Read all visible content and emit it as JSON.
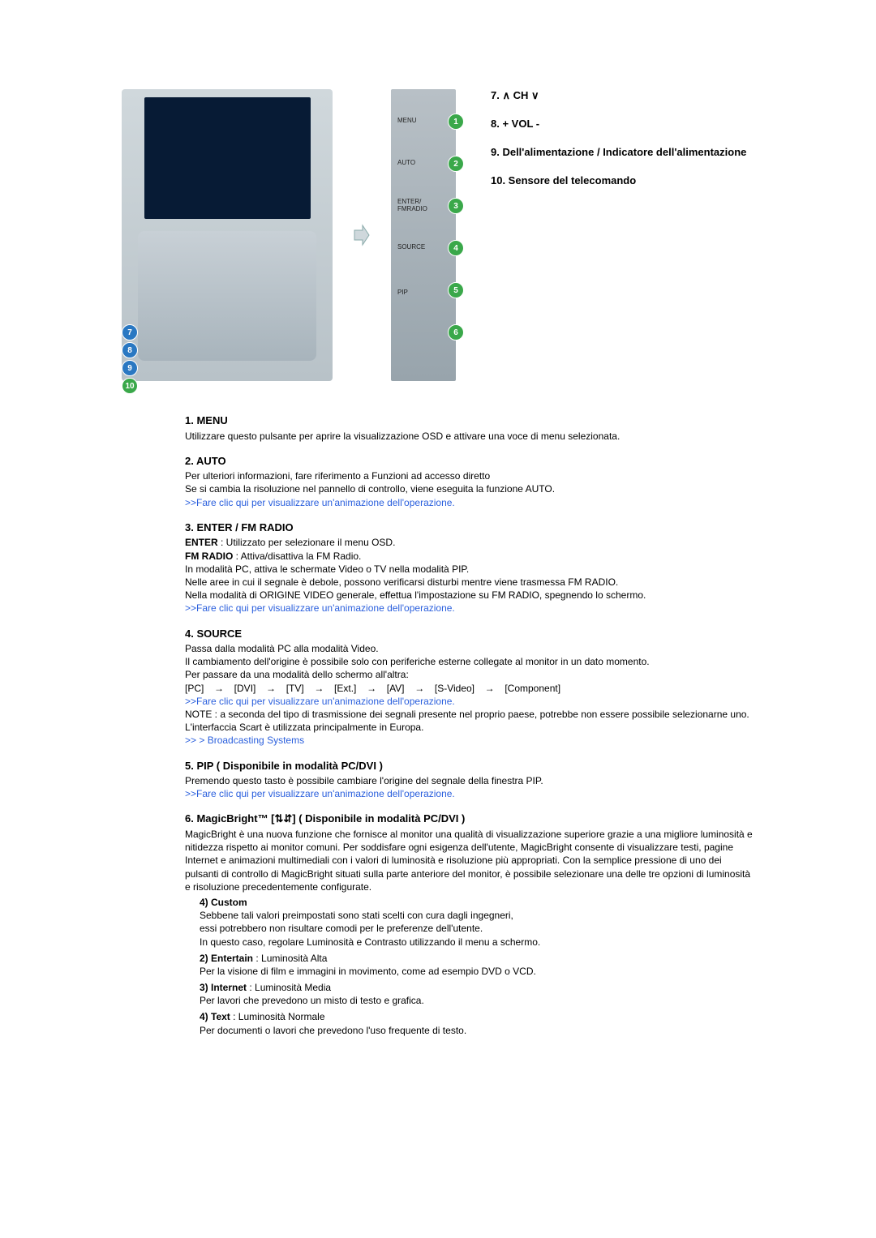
{
  "topRight": {
    "item7": "7. ∧ CH ∨",
    "item8": "8. + VOL -",
    "item9": "9. Dell'alimentazione / Indicatore dell'alimentazione",
    "item10": "10. Sensore del telecomando"
  },
  "panelLabels": [
    "MENU",
    "AUTO",
    "ENTER/\nFM RADIO",
    "SOURCE",
    "PIP",
    ""
  ],
  "items": {
    "menu": {
      "title": "1. MENU",
      "body": "Utilizzare questo pulsante per aprire la visualizzazione OSD e attivare una voce di menu selezionata."
    },
    "auto": {
      "title": "2. AUTO",
      "line1": "Per ulteriori informazioni, fare riferimento a Funzioni ad accesso diretto",
      "line2": "Se si cambia la risoluzione nel pannello di controllo, viene eseguita la funzione AUTO.",
      "link": ">>Fare clic qui per visualizzare un'animazione dell'operazione."
    },
    "enter": {
      "title": "3. ENTER / FM RADIO",
      "enterLabel": "ENTER",
      "enterText": " : Utilizzato per selezionare il menu OSD.",
      "fmLabel": "FM RADIO",
      "fmText": " : Attiva/disattiva la FM Radio.",
      "line1": "In modalità PC, attiva le schermate Video o TV nella modalità PIP.",
      "line2": "Nelle aree in cui il segnale è debole, possono verificarsi disturbi mentre viene trasmessa FM RADIO.",
      "line3": "Nella modalità di ORIGINE VIDEO generale, effettua l'impostazione su FM RADIO, spegnendo lo schermo.",
      "link": ">>Fare clic qui per visualizzare un'animazione dell'operazione."
    },
    "source": {
      "title": "4. SOURCE",
      "line1": "Passa dalla modalità PC alla modalità Video.",
      "line2": "Il cambiamento dell'origine è possibile solo con periferiche esterne collegate al monitor in un dato momento.",
      "line3": "Per passare da una modalità dello schermo all'altra:",
      "modes": [
        "[PC]",
        "[DVI]",
        "[TV]",
        "[Ext.]",
        "[AV]",
        "[S-Video]",
        "[Component]"
      ],
      "arrow": "→",
      "link": ">>Fare clic qui per visualizzare un'animazione dell'operazione.",
      "note": "NOTE : a seconda del tipo di trasmissione dei segnali presente nel proprio paese, potrebbe non essere possibile selezionarne uno. L'interfaccia Scart è utilizzata principalmente in Europa.",
      "bcast": ">> >  Broadcasting Systems"
    },
    "pip": {
      "title": "5. PIP ( Disponibile in modalità PC/DVI )",
      "body": "Premendo questo tasto è possibile cambiare l'origine del segnale della finestra PIP.",
      "link": ">>Fare clic qui per visualizzare un'animazione dell'operazione."
    },
    "mb": {
      "title": "6. MagicBright™  [⇅⇵]  ( Disponibile in modalità PC/DVI )",
      "body": "MagicBright è una nuova funzione che fornisce al monitor una qualità di visualizzazione superiore grazie a una migliore luminosità e nitidezza rispetto ai monitor comuni. Per soddisfare ogni esigenza dell'utente, MagicBright consente di visualizzare testi, pagine Internet e animazioni multimediali con i valori di luminosità e risoluzione più appropriati. Con la semplice pressione di uno dei pulsanti di controllo di MagicBright situati sulla parte anteriore del monitor, è possibile selezionare una delle tre opzioni di luminosità e risoluzione precedentemente configurate.",
      "sub": {
        "custom": {
          "title": "4) Custom",
          "l1": "Sebbene tali valori preimpostati sono stati scelti con cura dagli ingegneri,",
          "l2": "essi potrebbero non risultare comodi per le preferenze dell'utente.",
          "l3": "In questo caso, regolare Luminosità e Contrasto utilizzando il menu a schermo."
        },
        "entertain": {
          "title": "2) Entertain",
          "after": " : Luminosità Alta",
          "l1": "Per la visione di film e immagini in movimento, come ad esempio DVD o VCD."
        },
        "internet": {
          "title": "3) Internet",
          "after": " : Luminosità Media",
          "l1": "Per lavori che prevedono un misto di testo e grafica."
        },
        "text": {
          "title": "4) Text",
          "after": " : Luminosità Normale",
          "l1": "Per documenti o lavori che prevedono l'uso frequente di testo."
        }
      }
    }
  }
}
